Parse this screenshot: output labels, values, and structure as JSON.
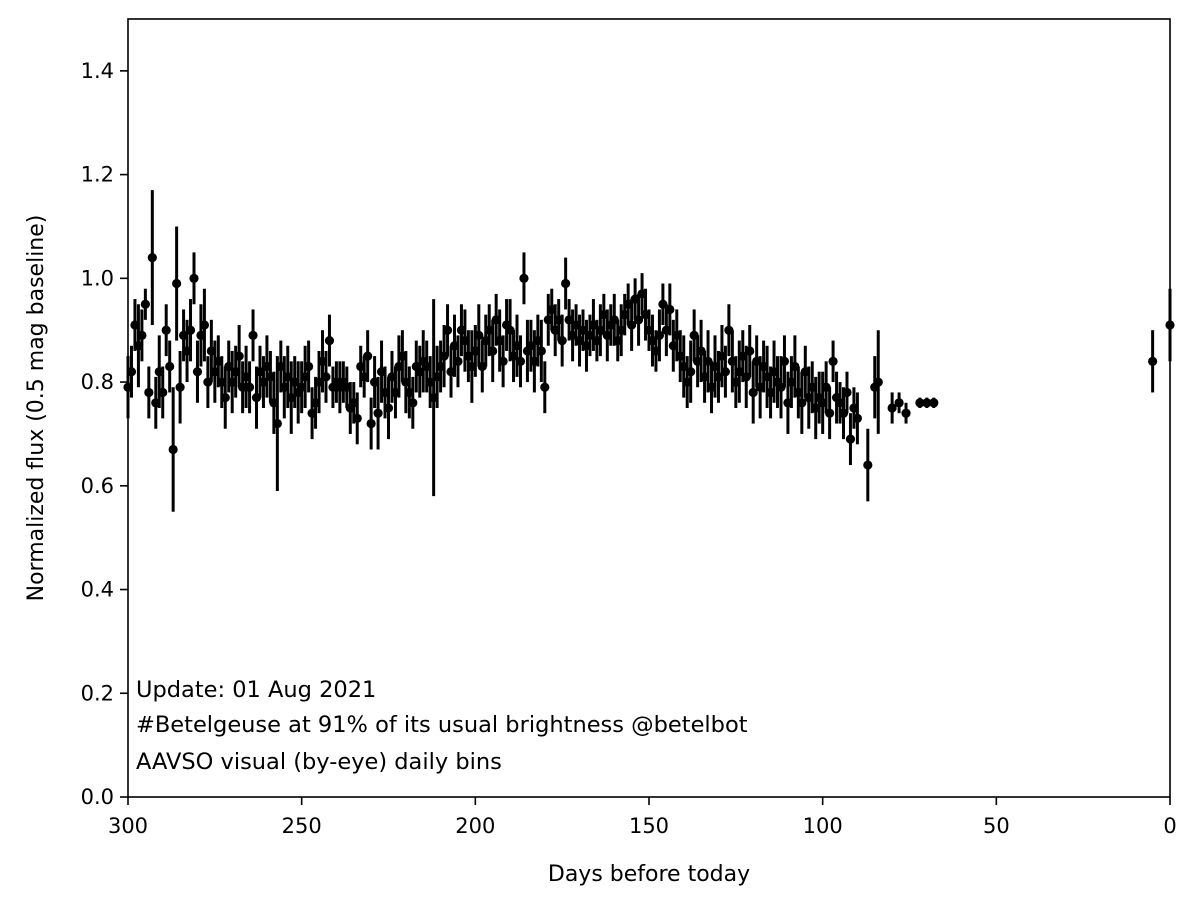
{
  "chart_data": {
    "type": "scatter",
    "xlabel": "Days before today",
    "ylabel": "Normalized flux (0.5 mag baseline)",
    "xlim": [
      300,
      0
    ],
    "ylim": [
      0.0,
      1.5
    ],
    "xticks": [
      300,
      250,
      200,
      150,
      100,
      50,
      0
    ],
    "yticks": [
      0.0,
      0.2,
      0.4,
      0.6,
      0.8,
      1.0,
      1.2,
      1.4
    ],
    "grid": false,
    "annotations": [
      "Update: 01 Aug 2021",
      "#Betelgeuse at 91% of its usual brightness @betelbot",
      "AAVSO visual (by-eye) daily bins"
    ],
    "marker_color": "#000000",
    "series": [
      {
        "points": [
          [
            300,
            0.79,
            0.06
          ],
          [
            299,
            0.82,
            0.05
          ],
          [
            298,
            0.91,
            0.05
          ],
          [
            297,
            0.87,
            0.08
          ],
          [
            296,
            0.89,
            0.05
          ],
          [
            295,
            0.95,
            0.03
          ],
          [
            294,
            0.78,
            0.05
          ],
          [
            293,
            1.04,
            0.13
          ],
          [
            292,
            0.76,
            0.05
          ],
          [
            291,
            0.82,
            0.07
          ],
          [
            290,
            0.78,
            0.05
          ],
          [
            289,
            0.9,
            0.05
          ],
          [
            288,
            0.83,
            0.05
          ],
          [
            287,
            0.67,
            0.12
          ],
          [
            286,
            0.99,
            0.11
          ],
          [
            285,
            0.79,
            0.07
          ],
          [
            284,
            0.89,
            0.05
          ],
          [
            283,
            0.86,
            0.06
          ],
          [
            282,
            0.9,
            0.06
          ],
          [
            281,
            1.0,
            0.05
          ],
          [
            280,
            0.82,
            0.06
          ],
          [
            279,
            0.89,
            0.06
          ],
          [
            278,
            0.91,
            0.07
          ],
          [
            277,
            0.8,
            0.05
          ],
          [
            276,
            0.86,
            0.06
          ],
          [
            275,
            0.82,
            0.06
          ],
          [
            274,
            0.84,
            0.05
          ],
          [
            273,
            0.8,
            0.05
          ],
          [
            272,
            0.77,
            0.06
          ],
          [
            271,
            0.83,
            0.05
          ],
          [
            270,
            0.8,
            0.06
          ],
          [
            269,
            0.82,
            0.05
          ],
          [
            268,
            0.85,
            0.06
          ],
          [
            267,
            0.79,
            0.05
          ],
          [
            266,
            0.81,
            0.06
          ],
          [
            265,
            0.79,
            0.05
          ],
          [
            264,
            0.89,
            0.05
          ],
          [
            263,
            0.77,
            0.06
          ],
          [
            262,
            0.82,
            0.05
          ],
          [
            261,
            0.8,
            0.05
          ],
          [
            260,
            0.83,
            0.06
          ],
          [
            259,
            0.81,
            0.05
          ],
          [
            258,
            0.76,
            0.06
          ],
          [
            257,
            0.72,
            0.13
          ],
          [
            256,
            0.83,
            0.05
          ],
          [
            255,
            0.79,
            0.06
          ],
          [
            254,
            0.81,
            0.06
          ],
          [
            253,
            0.77,
            0.07
          ],
          [
            252,
            0.8,
            0.05
          ],
          [
            251,
            0.78,
            0.06
          ],
          [
            250,
            0.79,
            0.05
          ],
          [
            249,
            0.81,
            0.06
          ],
          [
            248,
            0.83,
            0.05
          ],
          [
            247,
            0.74,
            0.05
          ],
          [
            246,
            0.76,
            0.05
          ],
          [
            245,
            0.8,
            0.06
          ],
          [
            244,
            0.84,
            0.06
          ],
          [
            243,
            0.81,
            0.05
          ],
          [
            242,
            0.88,
            0.05
          ],
          [
            241,
            0.79,
            0.04
          ],
          [
            240,
            0.8,
            0.04
          ],
          [
            239,
            0.79,
            0.05
          ],
          [
            238,
            0.8,
            0.04
          ],
          [
            237,
            0.79,
            0.04
          ],
          [
            236,
            0.75,
            0.05
          ],
          [
            235,
            0.76,
            0.04
          ],
          [
            234,
            0.73,
            0.05
          ],
          [
            233,
            0.83,
            0.04
          ],
          [
            232,
            0.81,
            0.04
          ],
          [
            231,
            0.85,
            0.05
          ],
          [
            230,
            0.72,
            0.05
          ],
          [
            229,
            0.8,
            0.05
          ],
          [
            228,
            0.74,
            0.07
          ],
          [
            227,
            0.82,
            0.06
          ],
          [
            226,
            0.78,
            0.05
          ],
          [
            225,
            0.75,
            0.06
          ],
          [
            224,
            0.81,
            0.05
          ],
          [
            223,
            0.78,
            0.05
          ],
          [
            222,
            0.83,
            0.06
          ],
          [
            221,
            0.85,
            0.05
          ],
          [
            220,
            0.8,
            0.06
          ],
          [
            219,
            0.78,
            0.05
          ],
          [
            218,
            0.76,
            0.05
          ],
          [
            217,
            0.83,
            0.05
          ],
          [
            216,
            0.82,
            0.05
          ],
          [
            215,
            0.84,
            0.06
          ],
          [
            214,
            0.83,
            0.05
          ],
          [
            213,
            0.8,
            0.05
          ],
          [
            212,
            0.77,
            0.19
          ],
          [
            211,
            0.81,
            0.06
          ],
          [
            210,
            0.83,
            0.05
          ],
          [
            209,
            0.85,
            0.06
          ],
          [
            208,
            0.9,
            0.05
          ],
          [
            207,
            0.82,
            0.05
          ],
          [
            206,
            0.87,
            0.06
          ],
          [
            205,
            0.84,
            0.05
          ],
          [
            204,
            0.9,
            0.05
          ],
          [
            203,
            0.88,
            0.06
          ],
          [
            202,
            0.85,
            0.05
          ],
          [
            201,
            0.83,
            0.07
          ],
          [
            200,
            0.86,
            0.05
          ],
          [
            199,
            0.89,
            0.06
          ],
          [
            198,
            0.83,
            0.05
          ],
          [
            197,
            0.88,
            0.05
          ],
          [
            196,
            0.9,
            0.05
          ],
          [
            195,
            0.86,
            0.06
          ],
          [
            194,
            0.92,
            0.05
          ],
          [
            193,
            0.88,
            0.06
          ],
          [
            192,
            0.84,
            0.05
          ],
          [
            191,
            0.91,
            0.05
          ],
          [
            190,
            0.9,
            0.06
          ],
          [
            189,
            0.85,
            0.05
          ],
          [
            188,
            0.87,
            0.06
          ],
          [
            187,
            0.84,
            0.05
          ],
          [
            186,
            1.0,
            0.05
          ],
          [
            185,
            0.86,
            0.06
          ],
          [
            184,
            0.87,
            0.05
          ],
          [
            183,
            0.84,
            0.06
          ],
          [
            182,
            0.88,
            0.05
          ],
          [
            181,
            0.86,
            0.06
          ],
          [
            180,
            0.79,
            0.05
          ],
          [
            179,
            0.92,
            0.05
          ],
          [
            178,
            0.94,
            0.04
          ],
          [
            177,
            0.9,
            0.05
          ],
          [
            176,
            0.92,
            0.04
          ],
          [
            175,
            0.88,
            0.05
          ],
          [
            174,
            0.99,
            0.05
          ],
          [
            173,
            0.92,
            0.04
          ],
          [
            172,
            0.89,
            0.05
          ],
          [
            171,
            0.91,
            0.04
          ],
          [
            170,
            0.88,
            0.05
          ],
          [
            169,
            0.9,
            0.04
          ],
          [
            168,
            0.87,
            0.05
          ],
          [
            167,
            0.89,
            0.04
          ],
          [
            166,
            0.91,
            0.05
          ],
          [
            165,
            0.88,
            0.04
          ],
          [
            164,
            0.9,
            0.05
          ],
          [
            163,
            0.93,
            0.04
          ],
          [
            162,
            0.89,
            0.05
          ],
          [
            161,
            0.91,
            0.04
          ],
          [
            160,
            0.92,
            0.05
          ],
          [
            159,
            0.88,
            0.04
          ],
          [
            158,
            0.9,
            0.05
          ],
          [
            157,
            0.93,
            0.04
          ],
          [
            156,
            0.95,
            0.04
          ],
          [
            155,
            0.91,
            0.05
          ],
          [
            154,
            0.96,
            0.04
          ],
          [
            153,
            0.92,
            0.05
          ],
          [
            152,
            0.97,
            0.04
          ],
          [
            151,
            0.93,
            0.05
          ],
          [
            150,
            0.9,
            0.04
          ],
          [
            149,
            0.88,
            0.05
          ],
          [
            148,
            0.86,
            0.04
          ],
          [
            147,
            0.89,
            0.05
          ],
          [
            146,
            0.95,
            0.04
          ],
          [
            145,
            0.9,
            0.05
          ],
          [
            144,
            0.94,
            0.05
          ],
          [
            143,
            0.87,
            0.05
          ],
          [
            142,
            0.89,
            0.05
          ],
          [
            141,
            0.85,
            0.05
          ],
          [
            140,
            0.83,
            0.06
          ],
          [
            139,
            0.8,
            0.05
          ],
          [
            138,
            0.82,
            0.06
          ],
          [
            137,
            0.89,
            0.05
          ],
          [
            136,
            0.84,
            0.05
          ],
          [
            135,
            0.86,
            0.06
          ],
          [
            134,
            0.81,
            0.05
          ],
          [
            133,
            0.84,
            0.06
          ],
          [
            132,
            0.79,
            0.05
          ],
          [
            131,
            0.83,
            0.06
          ],
          [
            130,
            0.81,
            0.05
          ],
          [
            129,
            0.85,
            0.06
          ],
          [
            128,
            0.82,
            0.05
          ],
          [
            127,
            0.9,
            0.05
          ],
          [
            126,
            0.84,
            0.06
          ],
          [
            125,
            0.8,
            0.05
          ],
          [
            124,
            0.82,
            0.06
          ],
          [
            123,
            0.85,
            0.05
          ],
          [
            122,
            0.81,
            0.06
          ],
          [
            121,
            0.86,
            0.05
          ],
          [
            120,
            0.78,
            0.06
          ],
          [
            119,
            0.84,
            0.05
          ],
          [
            118,
            0.79,
            0.06
          ],
          [
            117,
            0.83,
            0.05
          ],
          [
            116,
            0.81,
            0.06
          ],
          [
            115,
            0.78,
            0.05
          ],
          [
            114,
            0.82,
            0.06
          ],
          [
            113,
            0.8,
            0.05
          ],
          [
            112,
            0.79,
            0.06
          ],
          [
            111,
            0.84,
            0.05
          ],
          [
            110,
            0.76,
            0.06
          ],
          [
            109,
            0.8,
            0.05
          ],
          [
            108,
            0.83,
            0.06
          ],
          [
            107,
            0.78,
            0.05
          ],
          [
            106,
            0.76,
            0.06
          ],
          [
            105,
            0.82,
            0.05
          ],
          [
            104,
            0.77,
            0.06
          ],
          [
            103,
            0.79,
            0.05
          ],
          [
            102,
            0.75,
            0.06
          ],
          [
            101,
            0.77,
            0.05
          ],
          [
            100,
            0.76,
            0.06
          ],
          [
            99,
            0.79,
            0.05
          ],
          [
            98,
            0.74,
            0.05
          ],
          [
            97,
            0.84,
            0.04
          ],
          [
            96,
            0.77,
            0.05
          ],
          [
            95,
            0.76,
            0.04
          ],
          [
            94,
            0.74,
            0.05
          ],
          [
            93,
            0.78,
            0.04
          ],
          [
            92,
            0.69,
            0.05
          ],
          [
            91,
            0.75,
            0.04
          ],
          [
            90,
            0.73,
            0.05
          ],
          [
            87,
            0.64,
            0.07
          ],
          [
            85,
            0.79,
            0.06
          ],
          [
            84,
            0.8,
            0.1
          ],
          [
            80,
            0.75,
            0.03
          ],
          [
            78,
            0.76,
            0.02
          ],
          [
            76,
            0.74,
            0.02
          ],
          [
            72,
            0.76,
            0.01
          ],
          [
            70,
            0.76,
            0.01
          ],
          [
            68,
            0.76,
            0.01
          ],
          [
            5,
            0.84,
            0.06
          ],
          [
            0,
            0.91,
            0.07
          ]
        ]
      }
    ]
  }
}
